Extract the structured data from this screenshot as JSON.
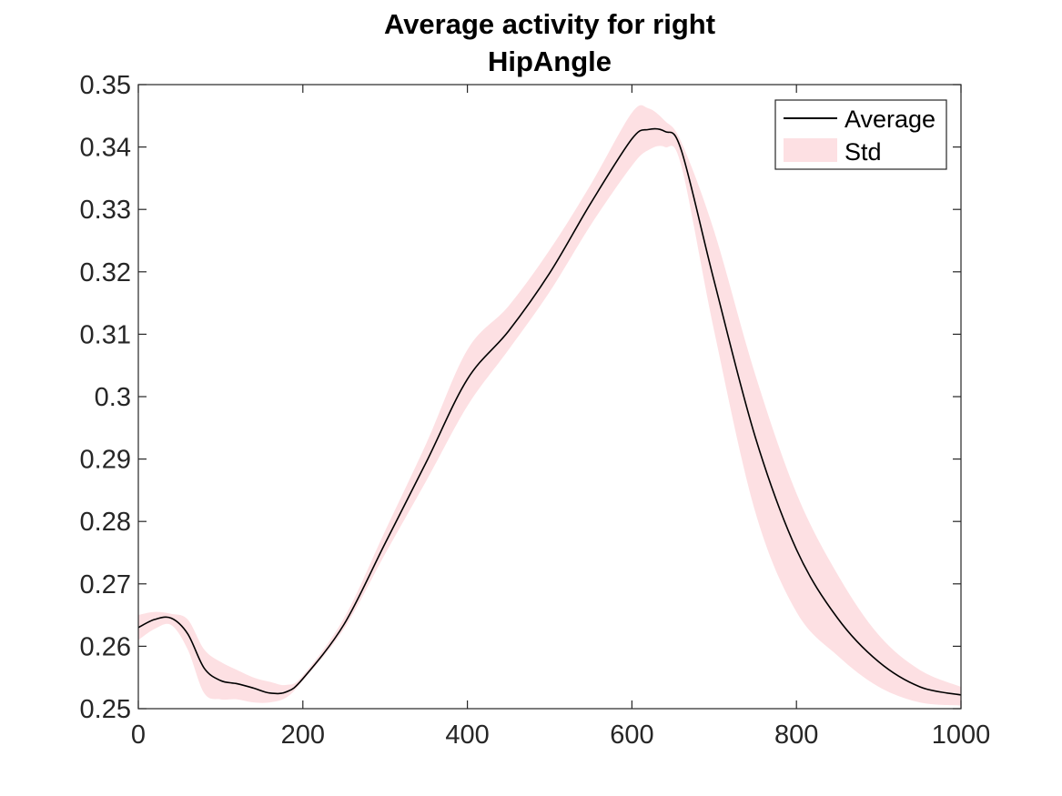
{
  "chart_data": {
    "type": "line",
    "title": [
      "Average activity for right",
      "HipAngle"
    ],
    "xlabel": "",
    "ylabel": "",
    "xlim": [
      0,
      1000
    ],
    "ylim": [
      0.25,
      0.35
    ],
    "xticks": [
      0,
      200,
      400,
      600,
      800,
      1000
    ],
    "yticks": [
      0.25,
      0.26,
      0.27,
      0.28,
      0.29,
      0.3,
      0.31,
      0.32,
      0.33,
      0.34,
      0.35
    ],
    "xtick_labels": [
      "0",
      "200",
      "400",
      "600",
      "800",
      "1000"
    ],
    "ytick_labels": [
      "0.25",
      "0.26",
      "0.27",
      "0.28",
      "0.29",
      "0.3",
      "0.31",
      "0.32",
      "0.33",
      "0.34",
      "0.35"
    ],
    "grid": false,
    "legend": {
      "location": "top-right",
      "entries": [
        "Average",
        "Std"
      ]
    },
    "x": [
      0,
      20,
      40,
      60,
      80,
      100,
      120,
      140,
      160,
      180,
      200,
      250,
      300,
      350,
      400,
      450,
      500,
      550,
      600,
      620,
      640,
      660,
      700,
      750,
      800,
      850,
      900,
      950,
      1000
    ],
    "series": [
      {
        "name": "Average",
        "color": "#000000",
        "values": [
          0.263,
          0.2643,
          0.2645,
          0.262,
          0.2565,
          0.2545,
          0.254,
          0.2533,
          0.2525,
          0.2527,
          0.2548,
          0.2635,
          0.2765,
          0.2895,
          0.3028,
          0.3105,
          0.3198,
          0.331,
          0.3413,
          0.3428,
          0.3425,
          0.3395,
          0.3185,
          0.2935,
          0.2755,
          0.2645,
          0.2575,
          0.2535,
          0.2522
        ]
      }
    ],
    "band": {
      "name": "Std",
      "color": "#fde0e3",
      "lower": [
        0.261,
        0.2628,
        0.2634,
        0.2595,
        0.2525,
        0.2515,
        0.2515,
        0.251,
        0.251,
        0.2518,
        0.2545,
        0.2628,
        0.2748,
        0.2865,
        0.2985,
        0.3075,
        0.3168,
        0.3275,
        0.337,
        0.3395,
        0.34,
        0.337,
        0.3105,
        0.2815,
        0.2655,
        0.2585,
        0.2535,
        0.251,
        0.2505
      ],
      "upper": [
        0.265,
        0.2655,
        0.2652,
        0.2643,
        0.2595,
        0.2575,
        0.2562,
        0.255,
        0.2543,
        0.2538,
        0.2553,
        0.2645,
        0.2785,
        0.2925,
        0.3075,
        0.3145,
        0.3235,
        0.334,
        0.3455,
        0.3462,
        0.3442,
        0.3408,
        0.3265,
        0.3035,
        0.2845,
        0.2715,
        0.2618,
        0.2562,
        0.2535
      ]
    }
  }
}
